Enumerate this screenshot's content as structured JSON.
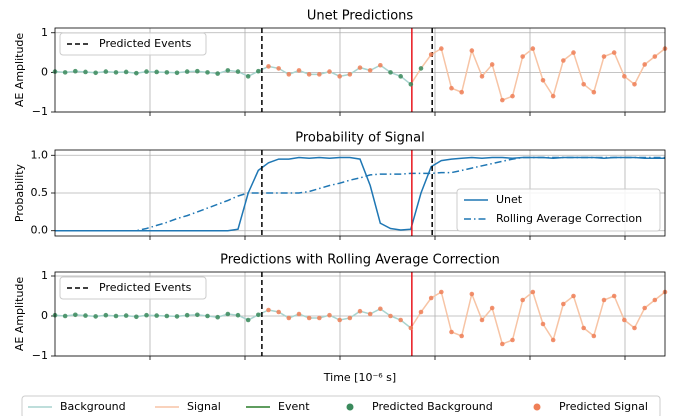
{
  "chart_data": [
    {
      "type": "line",
      "title": "Unet Predictions",
      "ylabel": "AE Amplitude",
      "xlim": [
        0,
        60
      ],
      "ylim": [
        -1,
        1.12
      ],
      "yticks": [
        {
          "value": -1,
          "label": "−1"
        },
        0,
        1
      ],
      "grid": true,
      "legend": "upper left",
      "events": {
        "name": "Predicted Events",
        "color": "#000000",
        "x": [
          20.35,
          37.1
        ]
      },
      "onset": {
        "color": "#e8141c",
        "x": 35.1
      },
      "series": [
        {
          "name": "Background",
          "color": "#a9d4cf",
          "values": [
            0.02,
            0.0,
            0.03,
            0.01,
            -0.01,
            0.02,
            0.0,
            0.01,
            -0.02,
            0.02,
            0.01,
            0.0,
            -0.01,
            0.02,
            0.03,
            0.0,
            -0.03,
            0.05,
            0.02,
            -0.1,
            0.03,
            0.15,
            0.1,
            -0.05,
            0.05,
            -0.05,
            -0.05,
            0.02,
            -0.1,
            -0.05,
            0.12,
            0.05,
            0.18,
            0.0,
            -0.1,
            -0.3,
            null,
            null,
            null,
            null,
            null,
            null,
            null,
            null,
            null,
            null,
            null,
            null,
            null,
            null,
            null,
            null,
            null,
            null,
            null,
            null,
            null,
            null,
            null,
            null,
            null
          ]
        },
        {
          "name": "Signal",
          "color": "#f7c4a5",
          "values": [
            null,
            null,
            null,
            null,
            null,
            null,
            null,
            null,
            null,
            null,
            null,
            null,
            null,
            null,
            null,
            null,
            null,
            null,
            null,
            null,
            null,
            null,
            null,
            null,
            null,
            null,
            null,
            null,
            null,
            null,
            null,
            null,
            null,
            null,
            null,
            -0.3,
            0.1,
            0.45,
            0.6,
            -0.4,
            -0.5,
            0.55,
            -0.1,
            0.2,
            -0.7,
            -0.6,
            0.4,
            0.6,
            -0.2,
            -0.6,
            0.3,
            0.5,
            -0.3,
            -0.5,
            0.4,
            0.5,
            -0.1,
            -0.3,
            0.2,
            0.4,
            0.6
          ]
        },
        {
          "name": "Predicted Background",
          "color": "#3a8a5c",
          "marker": "o",
          "values": [
            0.02,
            0.0,
            0.03,
            0.01,
            -0.01,
            0.02,
            0.0,
            0.01,
            -0.02,
            0.02,
            0.01,
            0.0,
            -0.01,
            0.02,
            0.03,
            0.0,
            -0.03,
            0.05,
            0.02,
            -0.1,
            0.03,
            null,
            null,
            null,
            null,
            null,
            null,
            null,
            null,
            null,
            null,
            null,
            null,
            0.0,
            -0.1,
            -0.3,
            0.1,
            null,
            null,
            null,
            null,
            null,
            null,
            null,
            null,
            null,
            null,
            null,
            null,
            null,
            null,
            null,
            null,
            null,
            null,
            null,
            null,
            null,
            null,
            null,
            null
          ]
        },
        {
          "name": "Predicted Signal",
          "color": "#ef7f57",
          "marker": "o",
          "values": [
            null,
            null,
            null,
            null,
            null,
            null,
            null,
            null,
            null,
            null,
            null,
            null,
            null,
            null,
            null,
            null,
            null,
            null,
            null,
            null,
            null,
            0.15,
            0.1,
            -0.05,
            0.05,
            -0.05,
            -0.05,
            0.02,
            -0.1,
            -0.05,
            0.12,
            0.05,
            0.18,
            null,
            null,
            null,
            null,
            0.45,
            0.6,
            -0.4,
            -0.5,
            0.55,
            -0.1,
            0.2,
            -0.7,
            -0.6,
            0.4,
            0.6,
            -0.2,
            -0.6,
            0.3,
            0.5,
            -0.3,
            -0.5,
            0.4,
            0.5,
            -0.1,
            -0.3,
            0.2,
            0.4,
            0.6
          ]
        }
      ]
    },
    {
      "type": "line",
      "title": "Probability of Signal",
      "ylabel": "Probability",
      "xlim": [
        0,
        60
      ],
      "ylim": [
        -0.07,
        1.07
      ],
      "yticks": [
        {
          "value": 0,
          "label": "0.0"
        },
        0.5,
        {
          "value": 1,
          "label": "1.0"
        }
      ],
      "grid": true,
      "legend": "lower right",
      "events": {
        "color": "#000000",
        "x": [
          20.35,
          37.1
        ]
      },
      "onset": {
        "color": "#e8141c",
        "x": 35.1
      },
      "series": [
        {
          "name": "Unet",
          "color": "#1f77b4",
          "values": [
            0,
            0,
            0,
            0,
            0,
            0,
            0,
            0,
            0,
            0,
            0,
            0,
            0,
            0,
            0,
            0,
            0,
            0,
            0.02,
            0.5,
            0.8,
            0.9,
            0.95,
            0.95,
            0.97,
            0.96,
            0.97,
            0.96,
            0.97,
            0.97,
            0.95,
            0.6,
            0.1,
            0.03,
            0.01,
            0.02,
            0.5,
            0.85,
            0.93,
            0.95,
            0.96,
            0.97,
            0.96,
            0.97,
            0.97,
            0.96,
            0.97,
            0.97,
            0.97,
            0.96,
            0.97,
            0.97,
            0.97,
            0.97,
            0.96,
            0.97,
            0.97,
            0.97,
            0.96,
            0.96,
            0.96
          ]
        },
        {
          "name": "Rolling Average Correction",
          "color": "#1f77b4",
          "dash": "dashdot",
          "values": [
            0,
            0,
            0,
            0,
            0,
            0,
            0,
            0,
            0,
            0.03,
            0.07,
            0.11,
            0.16,
            0.2,
            0.25,
            0.3,
            0.35,
            0.4,
            0.46,
            0.5,
            0.5,
            0.5,
            0.5,
            0.5,
            0.5,
            0.52,
            0.56,
            0.6,
            0.63,
            0.67,
            0.7,
            0.74,
            0.75,
            0.75,
            0.75,
            0.76,
            0.76,
            0.76,
            0.77,
            0.77,
            0.8,
            0.83,
            0.86,
            0.89,
            0.92,
            0.95,
            0.97,
            0.97,
            0.97,
            0.97,
            0.97,
            0.97,
            0.97,
            0.97,
            0.97,
            0.97,
            0.97,
            0.97,
            0.97,
            0.97,
            0.97
          ]
        }
      ]
    },
    {
      "type": "line",
      "title": "Predictions with Rolling Average Correction",
      "ylabel": "AE Amplitude",
      "xlabel": "Time [10⁻⁶ s]",
      "xlim": [
        0,
        60
      ],
      "ylim": [
        -1,
        1.1
      ],
      "yticks": [
        {
          "value": -1,
          "label": "−1"
        },
        0,
        1
      ],
      "grid": true,
      "legend": "upper left",
      "events": {
        "name": "Predicted Events",
        "color": "#000000",
        "x": [
          20.35
        ]
      },
      "onset": {
        "color": "#e8141c",
        "x": 35.1
      },
      "series": [
        {
          "color": "#a9d4cf",
          "values": [
            0.02,
            0.0,
            0.03,
            0.01,
            -0.01,
            0.02,
            0.0,
            0.01,
            -0.02,
            0.02,
            0.01,
            0.0,
            -0.01,
            0.02,
            0.03,
            0.0,
            -0.03,
            0.05,
            0.02,
            -0.1,
            0.03,
            0.15,
            0.1,
            -0.05,
            0.05,
            -0.05,
            -0.05,
            0.02,
            -0.1,
            -0.05,
            0.12,
            0.05,
            0.18,
            0.0,
            -0.1,
            -0.3,
            null,
            null,
            null,
            null,
            null,
            null,
            null,
            null,
            null,
            null,
            null,
            null,
            null,
            null,
            null,
            null,
            null,
            null,
            null,
            null,
            null,
            null,
            null,
            null,
            null
          ]
        },
        {
          "color": "#f7c4a5",
          "values": [
            null,
            null,
            null,
            null,
            null,
            null,
            null,
            null,
            null,
            null,
            null,
            null,
            null,
            null,
            null,
            null,
            null,
            null,
            null,
            null,
            null,
            null,
            null,
            null,
            null,
            null,
            null,
            null,
            null,
            null,
            null,
            null,
            null,
            null,
            null,
            -0.3,
            0.1,
            0.45,
            0.6,
            -0.4,
            -0.5,
            0.55,
            -0.1,
            0.2,
            -0.7,
            -0.6,
            0.4,
            0.6,
            -0.2,
            -0.6,
            0.3,
            0.5,
            -0.3,
            -0.5,
            0.4,
            0.5,
            -0.1,
            -0.3,
            0.2,
            0.4,
            0.6
          ]
        },
        {
          "color": "#3a8a5c",
          "marker": "o",
          "values": [
            0.02,
            0.0,
            0.03,
            0.01,
            -0.01,
            0.02,
            0.0,
            0.01,
            -0.02,
            0.02,
            0.01,
            0.0,
            -0.01,
            0.02,
            0.03,
            0.0,
            -0.03,
            0.05,
            0.02,
            -0.1,
            0.03,
            null,
            null,
            null,
            null,
            null,
            null,
            null,
            null,
            null,
            null,
            null,
            null,
            null,
            null,
            null,
            null,
            null,
            null,
            null,
            null,
            null,
            null,
            null,
            null,
            null,
            null,
            null,
            null,
            null,
            null,
            null,
            null,
            null,
            null,
            null,
            null,
            null,
            null,
            null,
            null
          ]
        },
        {
          "color": "#ef7f57",
          "marker": "o",
          "values": [
            null,
            null,
            null,
            null,
            null,
            null,
            null,
            null,
            null,
            null,
            null,
            null,
            null,
            null,
            null,
            null,
            null,
            null,
            null,
            null,
            null,
            0.15,
            0.1,
            -0.05,
            0.05,
            -0.05,
            -0.05,
            0.02,
            -0.1,
            -0.05,
            0.12,
            0.05,
            0.18,
            0.0,
            -0.1,
            -0.3,
            0.1,
            0.45,
            0.6,
            -0.4,
            -0.5,
            0.55,
            -0.1,
            0.2,
            -0.7,
            -0.6,
            0.4,
            0.6,
            -0.2,
            -0.6,
            0.3,
            0.5,
            -0.3,
            -0.5,
            0.4,
            0.5,
            -0.1,
            -0.3,
            0.2,
            0.4,
            0.6
          ]
        }
      ]
    }
  ],
  "event_legend": {
    "name": "Event",
    "color": "#2a7d2a"
  }
}
